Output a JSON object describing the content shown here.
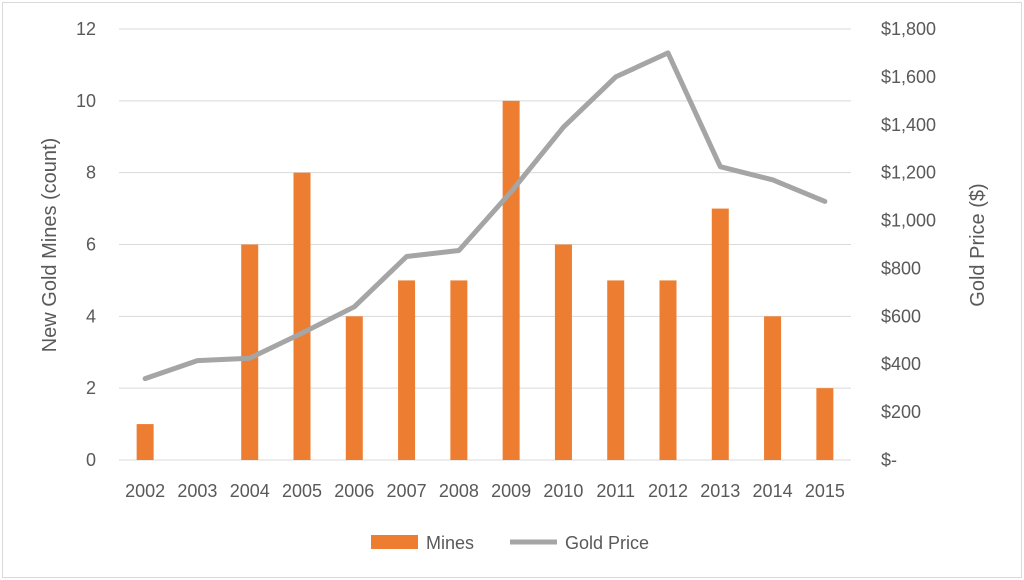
{
  "chart_data": {
    "type": "bar",
    "categories": [
      "2002",
      "2003",
      "2004",
      "2005",
      "2006",
      "2007",
      "2008",
      "2009",
      "2010",
      "2011",
      "2012",
      "2013",
      "2014",
      "2015"
    ],
    "series": [
      {
        "name": "Mines",
        "type": "bar",
        "axis": "left",
        "color": "#ed7d31",
        "values": [
          1,
          0,
          6,
          8,
          4,
          5,
          5,
          10,
          6,
          5,
          5,
          7,
          4,
          2
        ]
      },
      {
        "name": "Gold Price",
        "type": "line",
        "axis": "right",
        "color": "#a5a5a5",
        "values": [
          340,
          415,
          425,
          530,
          640,
          850,
          875,
          1120,
          1390,
          1600,
          1700,
          1225,
          1170,
          1080
        ]
      }
    ],
    "ylabel": "New Gold Mines (count)",
    "y2label": "Gold Price ($)",
    "ylim": [
      0,
      12
    ],
    "y2lim": [
      0,
      1800
    ],
    "yticks": [
      "0",
      "2",
      "4",
      "6",
      "8",
      "10",
      "12"
    ],
    "y2ticks": [
      "$-",
      "$200",
      "$400",
      "$600",
      "$800",
      "$1,000",
      "$1,200",
      "$1,400",
      "$1,600",
      "$1,800"
    ],
    "grid": true,
    "legend": "bottom"
  }
}
